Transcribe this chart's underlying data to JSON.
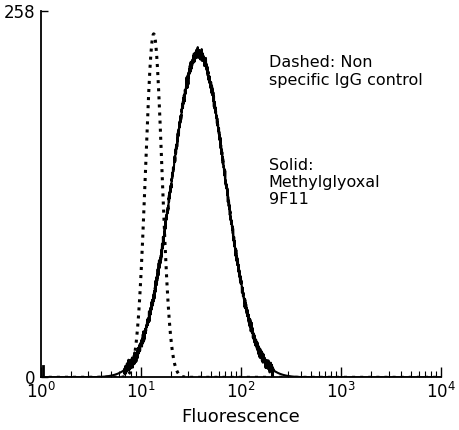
{
  "title": "",
  "xlabel": "Fluorescence",
  "ylabel": "",
  "xlim": [
    1.0,
    10000.0
  ],
  "ylim": [
    0,
    258
  ],
  "yticks": [
    0,
    258
  ],
  "background_color": "#ffffff",
  "line_color": "#000000",
  "annotation_dashed": "Dashed: Non\nspecific IgG control",
  "annotation_solid": "Solid:\nMethylglyoxal\n9F11",
  "dashed_peak_x": 13.5,
  "dashed_peak_y": 242,
  "dashed_sigma_log": 0.082,
  "solid_peak_x": 38.0,
  "solid_peak_y": 228,
  "solid_sigma_log": 0.27,
  "linewidth": 1.5,
  "annotation_fontsize": 11.5,
  "tick_labelsize": 12
}
